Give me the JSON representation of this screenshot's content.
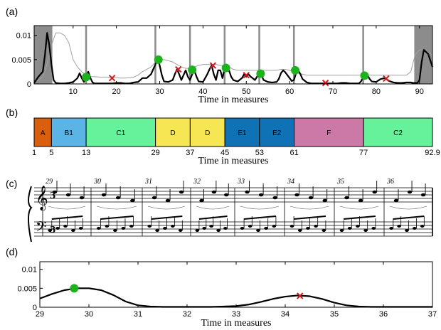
{
  "chart_data": [
    {
      "panel": "(a)",
      "type": "line",
      "xlabel": "Time in measures",
      "xlim": [
        1,
        93
      ],
      "ylim": [
        0,
        0.012
      ],
      "xticks": [
        10,
        20,
        30,
        40,
        50,
        60,
        70,
        80,
        90
      ],
      "yticks": [
        0.01,
        0.005,
        0
      ],
      "ytick_labels": [
        "0.01",
        "0.005",
        "0"
      ],
      "shaded_regions": [
        [
          1,
          5
        ],
        [
          89,
          93
        ]
      ],
      "segment_boundaries": [
        5,
        13,
        29,
        37,
        45,
        53,
        61,
        77,
        89
      ],
      "novelty_x": [
        1,
        2,
        3,
        3.5,
        4,
        4.5,
        5,
        5.5,
        6,
        7,
        8,
        9,
        10,
        11,
        11.5,
        12,
        12.5,
        13,
        13.5,
        14,
        14.5,
        15,
        16,
        17,
        18,
        19,
        20,
        21,
        22,
        23,
        24,
        25,
        26,
        27,
        28,
        28.5,
        29,
        29.5,
        30,
        30.5,
        31,
        32,
        33,
        33.5,
        34,
        34.5,
        35,
        35.5,
        36,
        36.5,
        37,
        37.5,
        38,
        38.5,
        39,
        40,
        41,
        41.5,
        42,
        42.5,
        43,
        43.5,
        44,
        44.5,
        45,
        45.5,
        46,
        46.5,
        47,
        48,
        49,
        49.5,
        50,
        50.5,
        51,
        52,
        52.5,
        53,
        53.5,
        54,
        55,
        56,
        57,
        57.5,
        58,
        58.5,
        59,
        60,
        60.5,
        61,
        61.5,
        62,
        62.5,
        63,
        64,
        65,
        66,
        67,
        68,
        69,
        70,
        71,
        72,
        73,
        74,
        75,
        76,
        76.5,
        77,
        77.5,
        78,
        78.5,
        79,
        80,
        81,
        82,
        83,
        84,
        85,
        86,
        87,
        88,
        88.5,
        89,
        89.5,
        90,
        90.5,
        91,
        92,
        93
      ],
      "novelty_y": [
        0.0002,
        0.0015,
        0.0025,
        0.006,
        0.0105,
        0.008,
        0.004,
        0.0008,
        0.0002,
        0.0001,
        0.0001,
        0.0002,
        0.0004,
        0.0012,
        0.0022,
        0.0012,
        0.0004,
        0.0015,
        0.0025,
        0.0012,
        0.0003,
        0.0001,
        0.0001,
        0.0001,
        0.0001,
        0.0001,
        0.0002,
        0.0002,
        0.0001,
        0.0001,
        0.0003,
        0.0004,
        0.0012,
        0.0012,
        0.002,
        0.003,
        0.004,
        0.0052,
        0.0038,
        0.0018,
        0.0005,
        0.0004,
        0.0008,
        0.002,
        0.003,
        0.002,
        0.0008,
        0.0018,
        0.0028,
        0.0015,
        0.0008,
        0.002,
        0.0028,
        0.0015,
        0.0005,
        0.0004,
        0.002,
        0.003,
        0.0038,
        0.002,
        0.0008,
        0.0028,
        0.0028,
        0.0012,
        0.0032,
        0.0038,
        0.0028,
        0.0015,
        0.0008,
        0.0005,
        0.0012,
        0.002,
        0.0015,
        0.002,
        0.0015,
        0.0008,
        0.0015,
        0.0022,
        0.0018,
        0.0008,
        0.0004,
        0.0003,
        0.0004,
        0.001,
        0.0022,
        0.0028,
        0.0024,
        0.0012,
        0.0006,
        0.0008,
        0.0022,
        0.0028,
        0.002,
        0.001,
        0.0003,
        0.0001,
        0.0001,
        0.0001,
        0.0001,
        0.0001,
        0.0001,
        0.0001,
        0.0002,
        0.0002,
        0.0001,
        0.0001,
        0.0001,
        0.0005,
        0.0015,
        0.002,
        0.0018,
        0.001,
        0.0005,
        0.0004,
        0.001,
        0.0012,
        0.0006,
        0.0003,
        0.0002,
        0.0002,
        0.0003,
        0.0003,
        0.0002,
        0.0002,
        0.0002,
        0.0008,
        0.0045,
        0.007,
        0.0062,
        0.0035,
        0.0008,
        0.0001,
        0.0001
      ],
      "threshold_x": [
        1,
        2,
        3,
        4,
        5,
        6,
        7,
        8,
        9,
        10,
        11,
        12,
        13,
        14,
        15,
        16,
        17,
        18,
        19,
        20,
        21,
        22,
        23,
        24,
        25,
        26,
        27,
        28,
        29,
        30,
        31,
        32,
        33,
        34,
        35,
        36,
        37,
        38,
        39,
        40,
        41,
        42,
        43,
        44,
        45,
        46,
        47,
        48,
        49,
        50,
        51,
        52,
        53,
        54,
        55,
        56,
        57,
        58,
        59,
        60,
        61,
        62,
        63,
        64,
        65,
        66,
        67,
        68,
        69,
        70,
        71,
        72,
        73,
        74,
        75,
        76,
        77,
        78,
        79,
        80,
        81,
        82,
        83,
        84,
        85,
        86,
        87,
        88,
        89,
        90,
        91,
        92,
        93
      ],
      "threshold_y": [
        0.0004,
        0.0008,
        0.0015,
        0.004,
        0.008,
        0.0105,
        0.0105,
        0.01,
        0.0085,
        0.005,
        0.0035,
        0.0025,
        0.0018,
        0.0015,
        0.0015,
        0.0014,
        0.0014,
        0.0014,
        0.0013,
        0.0013,
        0.0012,
        0.0012,
        0.0013,
        0.0014,
        0.0018,
        0.0025,
        0.003,
        0.0035,
        0.0045,
        0.005,
        0.005,
        0.0048,
        0.0045,
        0.004,
        0.0035,
        0.0032,
        0.0032,
        0.0035,
        0.0038,
        0.004,
        0.004,
        0.004,
        0.004,
        0.0038,
        0.0038,
        0.0035,
        0.003,
        0.0028,
        0.0028,
        0.0028,
        0.0028,
        0.0028,
        0.0028,
        0.0028,
        0.0028,
        0.0028,
        0.0028,
        0.003,
        0.003,
        0.0028,
        0.0025,
        0.0022,
        0.002,
        0.0018,
        0.0018,
        0.0018,
        0.0018,
        0.0018,
        0.0018,
        0.0018,
        0.0018,
        0.0018,
        0.0018,
        0.0018,
        0.0018,
        0.0018,
        0.0018,
        0.0018,
        0.0018,
        0.0018,
        0.0018,
        0.0018,
        0.0018,
        0.0018,
        0.0018,
        0.0018,
        0.0018,
        0.0025,
        0.006,
        0.007,
        0.007,
        0.0065,
        0.006
      ],
      "peaks_selected": [
        [
          13,
          0.0014
        ],
        [
          29.7,
          0.005
        ],
        [
          37.5,
          0.0029
        ],
        [
          45.3,
          0.0033
        ],
        [
          53.3,
          0.0021
        ],
        [
          61.3,
          0.0028
        ],
        [
          77.3,
          0.0017
        ]
      ],
      "peaks_rejected": [
        [
          19,
          0.0012
        ],
        [
          34.3,
          0.003
        ],
        [
          42.3,
          0.0038
        ],
        [
          50,
          0.0018
        ],
        [
          68.3,
          0.0002
        ],
        [
          82.3,
          0.0011
        ]
      ]
    },
    {
      "panel": "(b)",
      "type": "bar",
      "xlabel": "Time in measures",
      "segments": [
        {
          "label": "A",
          "start": 1,
          "end": 5,
          "color": "#d95f0e"
        },
        {
          "label": "B1",
          "start": 5,
          "end": 13,
          "color": "#5ab4e6"
        },
        {
          "label": "C1",
          "start": 13,
          "end": 29,
          "color": "#66f29a"
        },
        {
          "label": "D",
          "start": 29,
          "end": 37,
          "color": "#f7e654"
        },
        {
          "label": "D",
          "start": 37,
          "end": 45,
          "color": "#f7e654"
        },
        {
          "label": "E1",
          "start": 45,
          "end": 53,
          "color": "#0f72b5"
        },
        {
          "label": "E2",
          "start": 53,
          "end": 61,
          "color": "#0f72b5"
        },
        {
          "label": "F",
          "start": 61,
          "end": 77,
          "color": "#cc79a7"
        },
        {
          "label": "C2",
          "start": 77,
          "end": 92.9,
          "color": "#66f29a"
        }
      ],
      "boundary_labels": [
        "1",
        "5",
        "13",
        "29",
        "37",
        "45",
        "53",
        "61",
        "77",
        "92.9"
      ]
    },
    {
      "panel": "(d)",
      "type": "line",
      "xlabel": "Time in measures",
      "xlim": [
        29,
        37
      ],
      "ylim": [
        0,
        0.012
      ],
      "xticks": [
        29,
        30,
        31,
        32,
        33,
        34,
        35,
        36,
        37
      ],
      "yticks": [
        0.01,
        0.005,
        0
      ],
      "ytick_labels": [
        "0.01",
        "0.005",
        "0"
      ],
      "x": [
        29,
        29.25,
        29.5,
        29.75,
        30,
        30.25,
        30.5,
        30.75,
        31,
        31.25,
        31.5,
        31.75,
        32,
        32.25,
        32.5,
        32.75,
        33,
        33.25,
        33.5,
        33.75,
        34,
        34.25,
        34.5,
        34.75,
        35,
        35.25,
        35.5,
        35.75,
        36,
        36.25,
        36.5,
        36.75,
        37
      ],
      "y": [
        0.0023,
        0.0035,
        0.0045,
        0.005,
        0.005,
        0.0045,
        0.0032,
        0.0015,
        0.0005,
        0.0002,
        0.0001,
        0.0001,
        0.0001,
        0.0001,
        0.0001,
        0.0002,
        0.0003,
        0.0007,
        0.0014,
        0.0022,
        0.0028,
        0.0031,
        0.0029,
        0.0022,
        0.0012,
        0.0005,
        0.0002,
        0.0001,
        0.0001,
        0.0001,
        0.0001,
        0.0001,
        0.0001
      ],
      "peaks_selected": [
        [
          29.7,
          0.005
        ]
      ],
      "peaks_rejected": [
        [
          34.3,
          0.003
        ]
      ]
    }
  ],
  "panel_labels": {
    "a": "(a)",
    "b": "(b)",
    "c": "(c)",
    "d": "(d)"
  },
  "score": {
    "measure_numbers": [
      "29",
      "30",
      "31",
      "32",
      "33",
      "34",
      "35",
      "36"
    ]
  },
  "colors": {
    "novelty": "#000000",
    "threshold": "#a0a0a0",
    "selected_peak": "#1db31d",
    "rejected_peak": "#cc1f1f",
    "shade": "#8c8c8c"
  }
}
